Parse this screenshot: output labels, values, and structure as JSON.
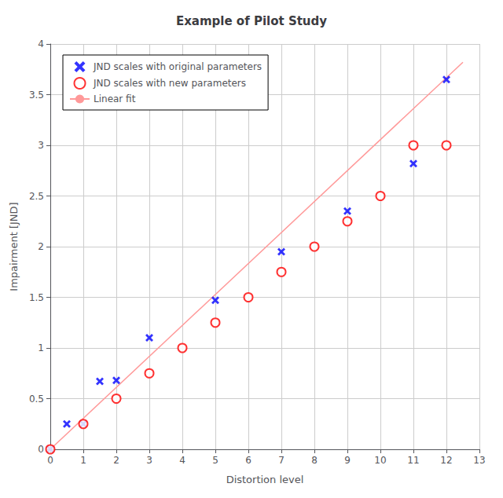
{
  "chart_data": {
    "type": "scatter",
    "title": "Example of Pilot Study",
    "xlabel": "Distortion level",
    "ylabel": "Impairment [JND]",
    "xlim": [
      0,
      13
    ],
    "ylim": [
      0,
      4
    ],
    "xticks": [
      0,
      1,
      2,
      3,
      4,
      5,
      6,
      7,
      8,
      9,
      10,
      11,
      12,
      13
    ],
    "yticks": [
      0,
      0.5,
      1,
      1.5,
      2,
      2.5,
      3,
      3.5,
      4
    ],
    "grid": true,
    "legend": "upper left",
    "series": [
      {
        "name": "JND scales with original parameters",
        "type": "scatter",
        "marker": "x",
        "color": "#0000FF",
        "x": [
          0.0,
          0.5,
          1.0,
          1.5,
          2.0,
          3.0,
          5.0,
          7.0,
          9.0,
          11.0,
          12.0
        ],
        "values": [
          0.0,
          0.25,
          0.25,
          0.67,
          0.68,
          1.1,
          1.47,
          1.95,
          2.35,
          2.82,
          3.65
        ]
      },
      {
        "name": "JND scales with new parameters",
        "type": "scatter",
        "marker": "circle",
        "color": "#FF0000",
        "x": [
          0.0,
          1.0,
          2.0,
          3.0,
          4.0,
          5.0,
          6.0,
          7.0,
          8.0,
          9.0,
          10.0,
          11.0,
          12.0
        ],
        "values": [
          0.0,
          0.25,
          0.5,
          0.75,
          1.0,
          1.25,
          1.5,
          1.75,
          2.0,
          2.25,
          2.5,
          3.0,
          3.0
        ]
      },
      {
        "name": "Linear fit",
        "type": "line",
        "color": "#FF9999",
        "x": [
          0.0,
          12.5
        ],
        "values": [
          0.0,
          3.82
        ]
      }
    ]
  }
}
